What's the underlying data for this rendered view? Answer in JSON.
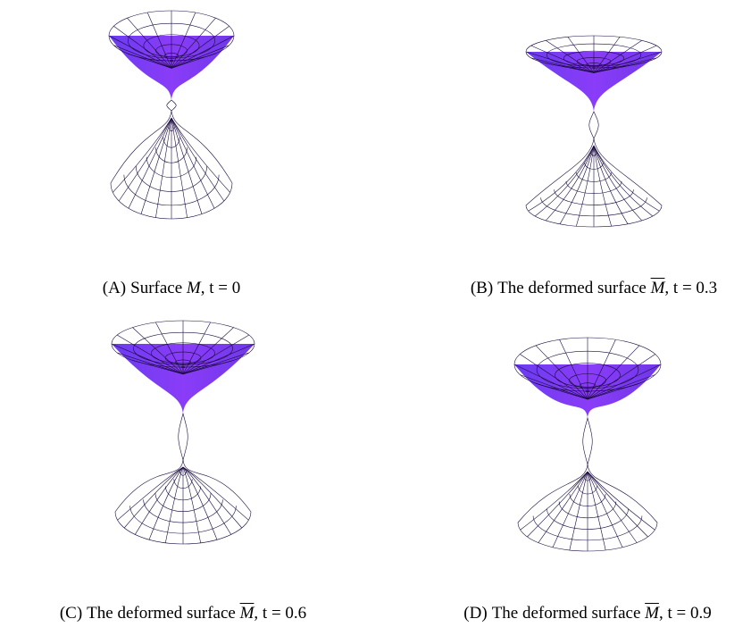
{
  "figure": {
    "panels": [
      {
        "label": "(A)",
        "text": "Surface",
        "symbol": "M",
        "overline": false,
        "rest": ", t = 0"
      },
      {
        "label": "(B)",
        "text": "The deformed surface",
        "symbol": "M",
        "overline": true,
        "rest": ", t = 0.3"
      },
      {
        "label": "(C)",
        "text": "The deformed surface",
        "symbol": "M",
        "overline": true,
        "rest": ", t = 0.6"
      },
      {
        "label": "(D)",
        "text": "The deformed surface",
        "symbol": "M",
        "overline": true,
        "rest": ", t = 0.9"
      }
    ]
  }
}
